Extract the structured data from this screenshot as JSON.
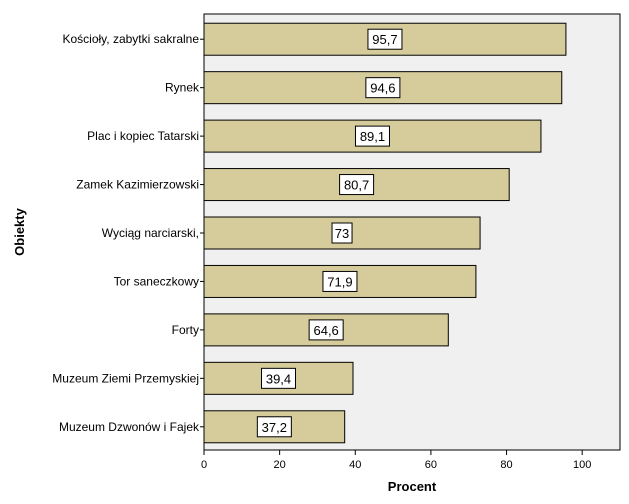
{
  "chart_data": {
    "type": "bar",
    "orientation": "horizontal",
    "categories": [
      "Kościoły, zabytki sakralne",
      "Rynek",
      "Plac i kopiec Tatarski",
      "Zamek Kazimierzowski",
      "Wyciąg narciarski,",
      "Tor saneczkowy",
      "Forty",
      "Muzeum Ziemi Przemyskiej",
      "Muzeum Dzwonów i Fajek"
    ],
    "values": [
      95.7,
      94.6,
      89.1,
      80.7,
      73,
      71.9,
      64.6,
      39.4,
      37.2
    ],
    "value_labels": [
      "95,7",
      "94,6",
      "89,1",
      "80,7",
      "73",
      "71,9",
      "64,6",
      "39,4",
      "37,2"
    ],
    "xlabel": "Procent",
    "ylabel": "Obiekty",
    "xlim": [
      0,
      110
    ],
    "xticks": [
      0,
      20,
      40,
      60,
      80,
      100
    ],
    "grid": false,
    "colors": {
      "bar_fill": "#d6cc9b",
      "bar_stroke": "#000000",
      "plot_background": "#f0f0f0",
      "label_box_fill": "#ffffff"
    }
  }
}
